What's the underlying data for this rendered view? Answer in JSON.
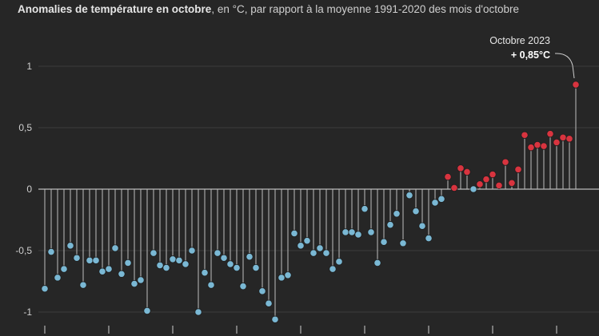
{
  "title": {
    "bold": "Anomalies de température en octobre",
    "rest": ", en °C, par rapport à la moyenne 1991-2020 des mois d'octobre"
  },
  "chart_data": {
    "type": "scatter",
    "style": "lollipop",
    "ylim": [
      -1.1,
      1.0
    ],
    "yticks": [
      1,
      0.5,
      0,
      -0.5,
      -1
    ],
    "yticklabels": [
      "1",
      "0,5",
      "0",
      "-0,5",
      "-1"
    ],
    "grid": true,
    "colors": {
      "negative": "#7ab8d4",
      "positive": "#d8343f",
      "stem": "#bdbdbd",
      "zero_line": "#e0e0e0",
      "grid": "#3c3c3c"
    },
    "values": [
      -0.81,
      -0.51,
      -0.72,
      -0.65,
      -0.46,
      -0.56,
      -0.78,
      -0.58,
      -0.58,
      -0.67,
      -0.65,
      -0.48,
      -0.69,
      -0.6,
      -0.77,
      -0.74,
      -0.99,
      -0.52,
      -0.62,
      -0.64,
      -0.57,
      -0.58,
      -0.61,
      -0.5,
      -1.0,
      -0.68,
      -0.78,
      -0.52,
      -0.56,
      -0.61,
      -0.64,
      -0.79,
      -0.55,
      -0.64,
      -0.83,
      -0.93,
      -1.06,
      -0.72,
      -0.7,
      -0.36,
      -0.46,
      -0.42,
      -0.52,
      -0.48,
      -0.52,
      -0.65,
      -0.59,
      -0.35,
      -0.35,
      -0.37,
      -0.16,
      -0.35,
      -0.6,
      -0.43,
      -0.29,
      -0.2,
      -0.44,
      -0.05,
      -0.18,
      -0.3,
      -0.4,
      -0.11,
      -0.08,
      0.1,
      0.01,
      0.17,
      0.14,
      0.0,
      0.04,
      0.08,
      0.12,
      0.03,
      0.22,
      0.05,
      0.16,
      0.44,
      0.34,
      0.36,
      0.35,
      0.45,
      0.38,
      0.42,
      0.41,
      0.85
    ],
    "annotation": {
      "label": "Octobre 2023",
      "value": "+ 0,85°C"
    }
  }
}
